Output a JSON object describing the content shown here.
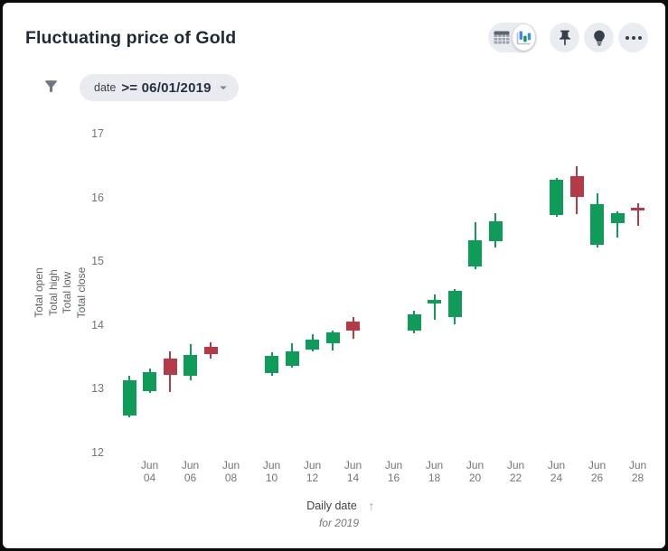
{
  "header": {
    "title": "Fluctuating price of Gold"
  },
  "toolbar": {
    "view_toggle": {
      "options": [
        "table",
        "chart"
      ],
      "selected": "chart"
    },
    "buttons": [
      "pin",
      "insights",
      "more-options"
    ]
  },
  "filter": {
    "field": "date",
    "condition": ">= 06/01/2019"
  },
  "chart_data": {
    "type": "candlestick",
    "title": "Fluctuating price of Gold",
    "x_axis": {
      "label": "Daily date",
      "sublabel": "for 2019",
      "sort_arrow": "↑",
      "tick_labels": [
        "Jun 04",
        "Jun 06",
        "Jun 08",
        "Jun 10",
        "Jun 12",
        "Jun 14",
        "Jun 16",
        "Jun 18",
        "Jun 20",
        "Jun 22",
        "Jun 24",
        "Jun 26",
        "Jun 28"
      ]
    },
    "y_axis": {
      "titles": [
        "Total open",
        "Total high",
        "Total low",
        "Total close"
      ],
      "ticks": [
        17,
        16,
        15,
        14,
        13,
        12
      ],
      "range": [
        12,
        17
      ]
    },
    "colors": {
      "rising": "#0f9b58",
      "falling": "#b43a48"
    },
    "legend": "none",
    "grid": false,
    "series": [
      {
        "date": "Jun 03",
        "open": 12.58,
        "high": 13.21,
        "low": 12.55,
        "close": 13.13
      },
      {
        "date": "Jun 04",
        "open": 12.96,
        "high": 13.32,
        "low": 12.93,
        "close": 13.26
      },
      {
        "date": "Jun 05",
        "open": 13.48,
        "high": 13.59,
        "low": 12.95,
        "close": 13.22
      },
      {
        "date": "Jun 06",
        "open": 13.2,
        "high": 13.7,
        "low": 13.13,
        "close": 13.53
      },
      {
        "date": "Jun 07",
        "open": 13.66,
        "high": 13.73,
        "low": 13.47,
        "close": 13.54
      },
      {
        "date": "Jun 10",
        "open": 13.24,
        "high": 13.57,
        "low": 13.2,
        "close": 13.51
      },
      {
        "date": "Jun 11",
        "open": 13.36,
        "high": 13.71,
        "low": 13.33,
        "close": 13.59
      },
      {
        "date": "Jun 12",
        "open": 13.61,
        "high": 13.85,
        "low": 13.58,
        "close": 13.77
      },
      {
        "date": "Jun 13",
        "open": 13.72,
        "high": 13.91,
        "low": 13.6,
        "close": 13.88
      },
      {
        "date": "Jun 14",
        "open": 14.06,
        "high": 14.12,
        "low": 13.78,
        "close": 13.91
      },
      {
        "date": "Jun 17",
        "open": 13.91,
        "high": 14.22,
        "low": 13.87,
        "close": 14.17
      },
      {
        "date": "Jun 18",
        "open": 14.33,
        "high": 14.48,
        "low": 14.08,
        "close": 14.4
      },
      {
        "date": "Jun 19",
        "open": 14.13,
        "high": 14.56,
        "low": 14.01,
        "close": 14.53
      },
      {
        "date": "Jun 20",
        "open": 14.92,
        "high": 15.61,
        "low": 14.87,
        "close": 15.33
      },
      {
        "date": "Jun 21",
        "open": 15.32,
        "high": 15.76,
        "low": 15.21,
        "close": 15.63
      },
      {
        "date": "Jun 24",
        "open": 15.73,
        "high": 16.31,
        "low": 15.7,
        "close": 16.28
      },
      {
        "date": "Jun 25",
        "open": 16.34,
        "high": 16.49,
        "low": 15.74,
        "close": 16.01
      },
      {
        "date": "Jun 26",
        "open": 15.26,
        "high": 16.06,
        "low": 15.22,
        "close": 15.89
      },
      {
        "date": "Jun 27",
        "open": 15.6,
        "high": 15.78,
        "low": 15.37,
        "close": 15.76
      },
      {
        "date": "Jun 28",
        "open": 15.84,
        "high": 15.91,
        "low": 15.55,
        "close": 15.82
      }
    ]
  }
}
